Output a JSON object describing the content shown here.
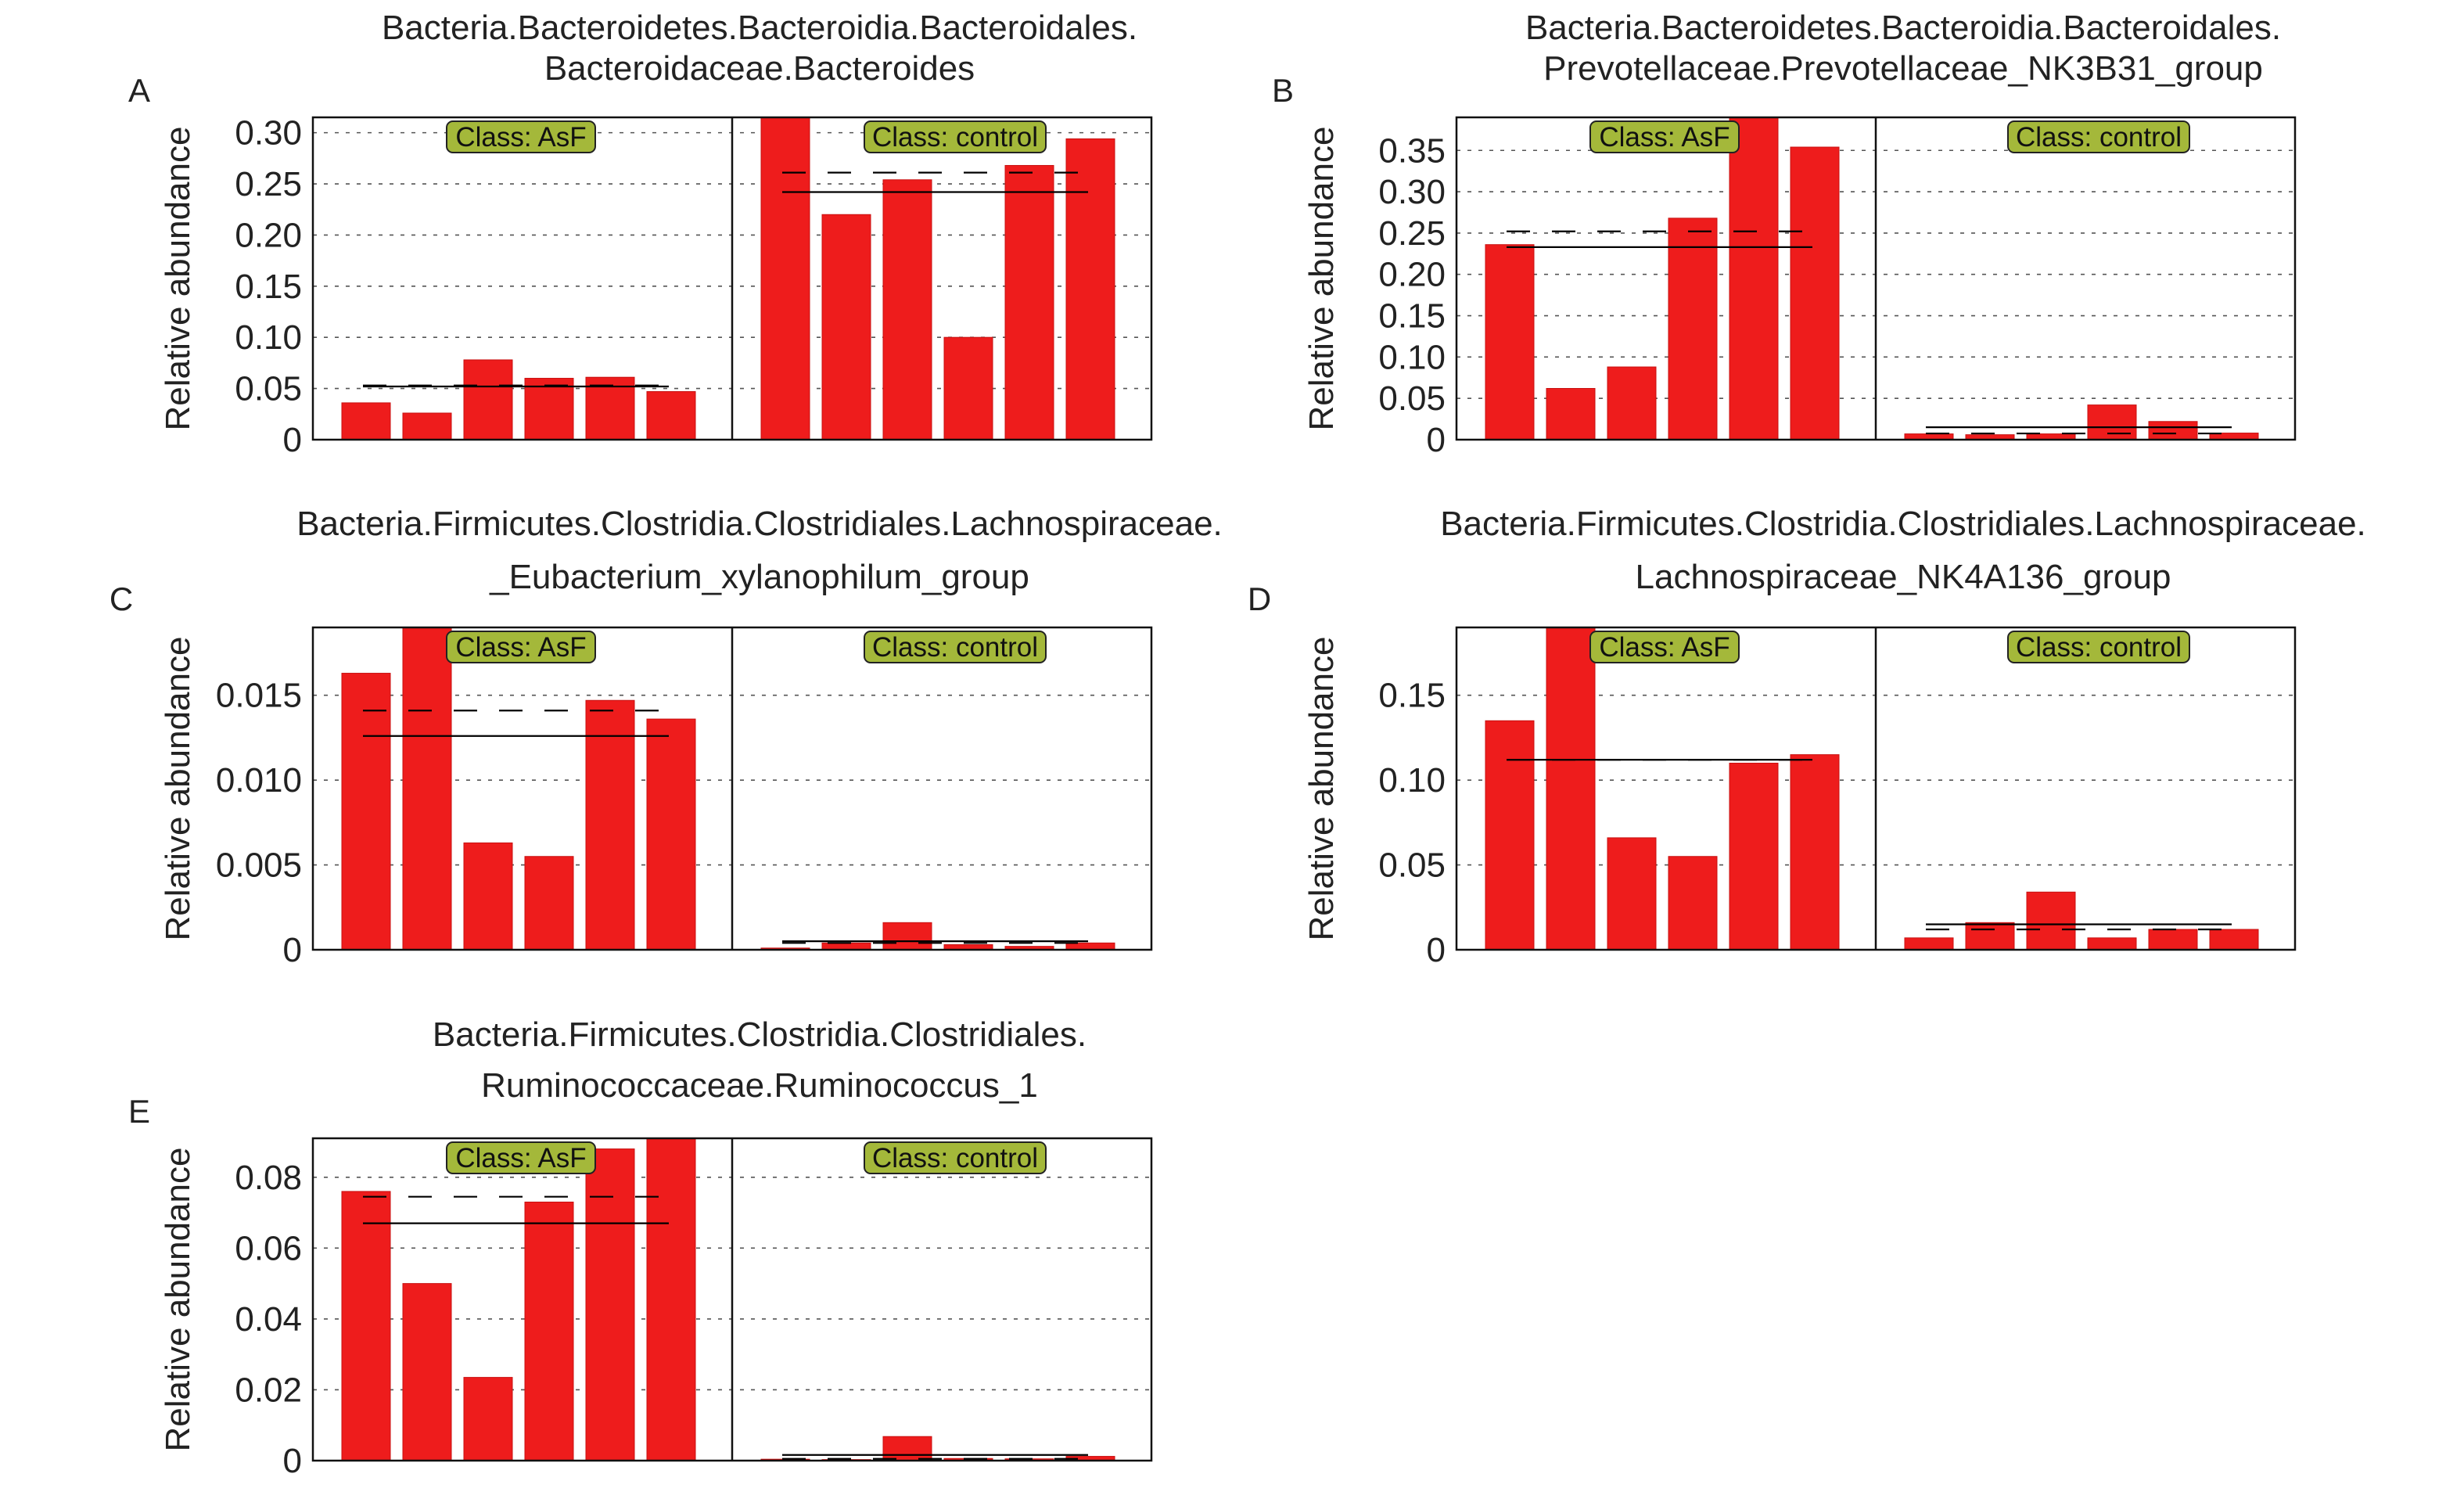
{
  "figure": {
    "ylabel": "Relative abundance",
    "class_labels": [
      "Class: AsF",
      "Class: control"
    ],
    "colors": {
      "bar": "#ee1c1c",
      "class_badge": "#a4b83a",
      "mean_line": "#000000"
    }
  },
  "chart_data": [
    {
      "type": "bar",
      "panel": "A",
      "title": [
        "Bacteria.Bacteroidetes.Bacteroidia.Bacteroidales.",
        "Bacteroidaceae.Bacteroides"
      ],
      "xlabel": "",
      "ylabel": "Relative abundance",
      "ylim": [
        0,
        0.315
      ],
      "yticks": [
        0,
        0.05,
        0.1,
        0.15,
        0.2,
        0.25,
        0.3
      ],
      "ytick_labels": [
        "0",
        "0.05",
        "0.10",
        "0.15",
        "0.20",
        "0.25",
        "0.30"
      ],
      "grid": true,
      "series": [
        {
          "name": "Class: AsF",
          "values": [
            0.036,
            0.026,
            0.078,
            0.06,
            0.061,
            0.047
          ],
          "mean": 0.052,
          "median": 0.053
        },
        {
          "name": "Class: control",
          "values": [
            0.315,
            0.22,
            0.254,
            0.1,
            0.268,
            0.294
          ],
          "mean": 0.242,
          "median": 0.261
        }
      ]
    },
    {
      "type": "bar",
      "panel": "B",
      "title": [
        "Bacteria.Bacteroidetes.Bacteroidia.Bacteroidales.",
        "Prevotellaceae.Prevotellaceae_NK3B31_group"
      ],
      "xlabel": "",
      "ylabel": "Relative abundance",
      "ylim": [
        0,
        0.39
      ],
      "yticks": [
        0,
        0.05,
        0.1,
        0.15,
        0.2,
        0.25,
        0.3,
        0.35
      ],
      "ytick_labels": [
        "0",
        "0.05",
        "0.10",
        "0.15",
        "0.20",
        "0.25",
        "0.30",
        "0.35"
      ],
      "grid": true,
      "series": [
        {
          "name": "Class: AsF",
          "values": [
            0.236,
            0.062,
            0.088,
            0.268,
            0.39,
            0.354
          ],
          "mean": 0.233,
          "median": 0.252
        },
        {
          "name": "Class: control",
          "values": [
            0.007,
            0.006,
            0.007,
            0.042,
            0.022,
            0.008
          ],
          "mean": 0.015,
          "median": 0.0075
        }
      ]
    },
    {
      "type": "bar",
      "panel": "C",
      "title": [
        "Bacteria.Firmicutes.Clostridia.Clostridiales.Lachnospiraceae.",
        "_Eubacterium_xylanophilum_group"
      ],
      "xlabel": "",
      "ylabel": "Relative abundance",
      "ylim": [
        0,
        0.019
      ],
      "yticks": [
        0,
        0.005,
        0.01,
        0.015
      ],
      "ytick_labels": [
        "0",
        "0.005",
        "0.010",
        "0.015"
      ],
      "grid": true,
      "series": [
        {
          "name": "Class: AsF",
          "values": [
            0.0163,
            0.019,
            0.0063,
            0.0055,
            0.0147,
            0.0136
          ],
          "mean": 0.0126,
          "median": 0.0141
        },
        {
          "name": "Class: control",
          "values": [
            0.0001,
            0.0004,
            0.0016,
            0.0003,
            0.0002,
            0.0004
          ],
          "mean": 0.0005,
          "median": 0.0004
        }
      ]
    },
    {
      "type": "bar",
      "panel": "D",
      "title": [
        "Bacteria.Firmicutes.Clostridia.Clostridiales.Lachnospiraceae.",
        "Lachnospiraceae_NK4A136_group"
      ],
      "xlabel": "",
      "ylabel": "Relative abundance",
      "ylim": [
        0,
        0.19
      ],
      "yticks": [
        0,
        0.05,
        0.1,
        0.15
      ],
      "ytick_labels": [
        "0",
        "0.05",
        "0.10",
        "0.15"
      ],
      "grid": true,
      "series": [
        {
          "name": "Class: AsF",
          "values": [
            0.135,
            0.19,
            0.066,
            0.055,
            0.11,
            0.115
          ],
          "mean": 0.112,
          "median": 0.112
        },
        {
          "name": "Class: control",
          "values": [
            0.007,
            0.016,
            0.034,
            0.007,
            0.012,
            0.012
          ],
          "mean": 0.015,
          "median": 0.012
        }
      ]
    },
    {
      "type": "bar",
      "panel": "E",
      "title": [
        "Bacteria.Firmicutes.Clostridia.Clostridiales.",
        "Ruminococcaceae.Ruminococcus_1"
      ],
      "xlabel": "",
      "ylabel": "Relative abundance",
      "ylim": [
        0,
        0.091
      ],
      "yticks": [
        0,
        0.02,
        0.04,
        0.06,
        0.08
      ],
      "ytick_labels": [
        "0",
        "0.02",
        "0.04",
        "0.06",
        "0.08"
      ],
      "grid": true,
      "series": [
        {
          "name": "Class: AsF",
          "values": [
            0.076,
            0.05,
            0.0235,
            0.073,
            0.088,
            0.091
          ],
          "mean": 0.067,
          "median": 0.0745
        },
        {
          "name": "Class: control",
          "values": [
            0.0004,
            0.0003,
            0.0068,
            0.0006,
            0.0005,
            0.0012
          ],
          "mean": 0.0016,
          "median": 0.0005
        }
      ]
    }
  ]
}
